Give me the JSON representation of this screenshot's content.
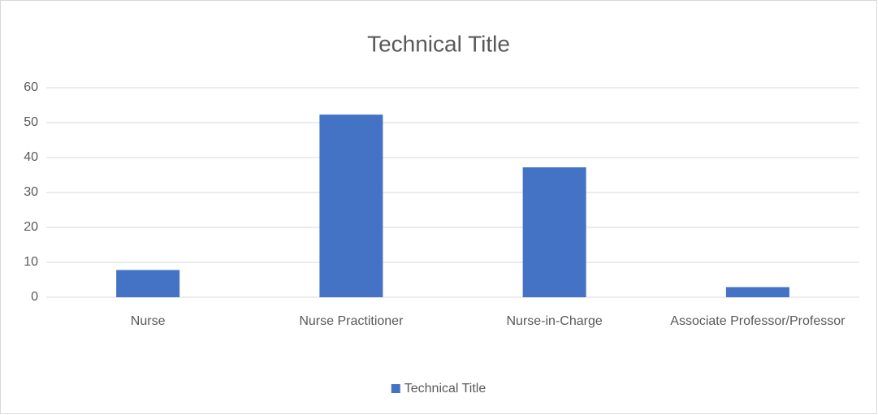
{
  "chart_data": {
    "type": "bar",
    "title": "Technical Title",
    "categories": [
      "Nurse",
      "Nurse Practitioner",
      "Nurse-in-Charge",
      "Associate Professor/Professor"
    ],
    "series": [
      {
        "name": "Technical Title",
        "color": "#4472c4",
        "values": [
          7.8,
          52.3,
          37.2,
          2.9
        ]
      }
    ],
    "ylim": [
      0,
      60
    ],
    "yticks": [
      0,
      10,
      20,
      30,
      40,
      50,
      60
    ],
    "grid": true,
    "legend": "bottom"
  }
}
